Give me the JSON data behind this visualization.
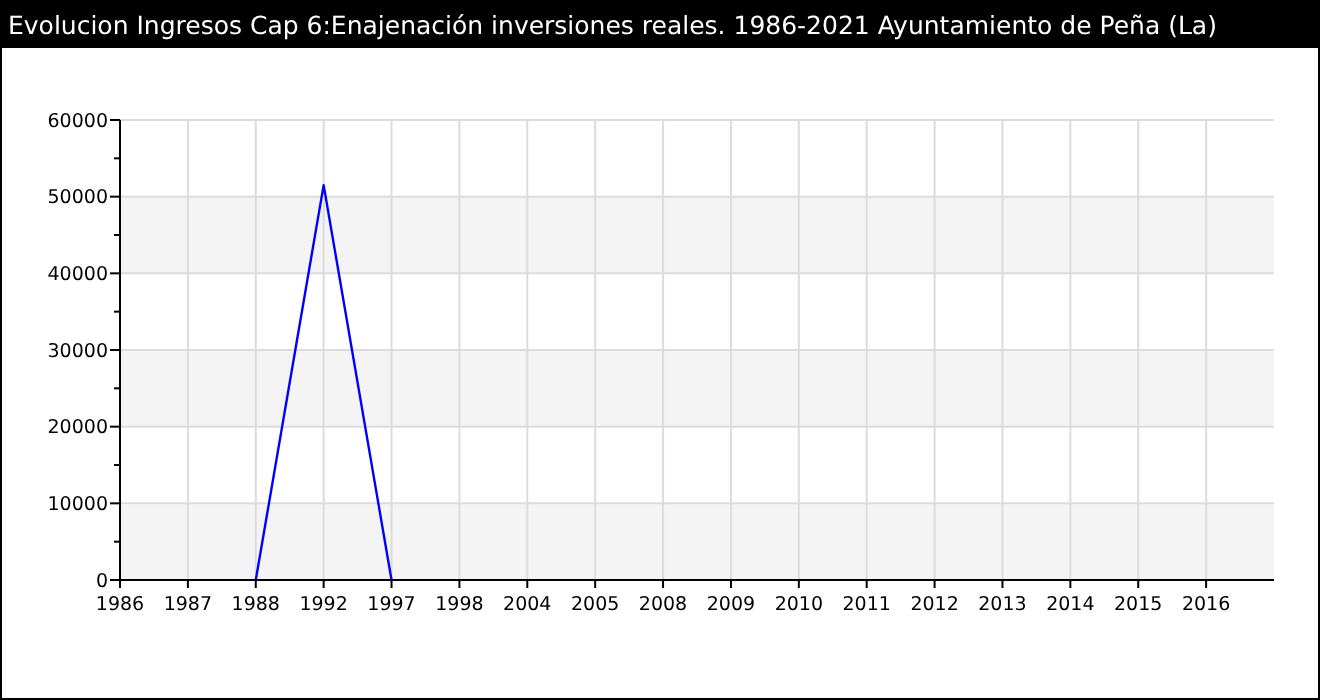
{
  "chart_data": {
    "type": "line",
    "title": "Evolucion Ingresos Cap 6:Enajenación inversiones reales. 1986-2021 Ayuntamiento de Peña (La)",
    "categories": [
      "1986",
      "1987",
      "1988",
      "1992",
      "1997",
      "1998",
      "2004",
      "2005",
      "2008",
      "2009",
      "2010",
      "2011",
      "2012",
      "2013",
      "2014",
      "2015",
      "2016"
    ],
    "series": [
      {
        "color": "#0000ff",
        "values": [
          null,
          null,
          0,
          51500,
          0,
          null,
          null,
          null,
          null,
          null,
          null,
          null,
          null,
          null,
          null,
          null,
          null
        ]
      }
    ],
    "ylim": [
      0,
      60000
    ],
    "yticks": [
      0,
      {
        "value": 5000,
        "label": null
      },
      10000,
      {
        "value": 15000,
        "label": null
      },
      20000,
      {
        "value": 25000,
        "label": null
      },
      30000,
      {
        "value": 35000,
        "label": null
      },
      40000,
      {
        "value": 45000,
        "label": null
      },
      50000,
      {
        "value": 55000,
        "label": null
      },
      60000
    ],
    "grid": true,
    "marker": "none",
    "line_style": "solid"
  }
}
